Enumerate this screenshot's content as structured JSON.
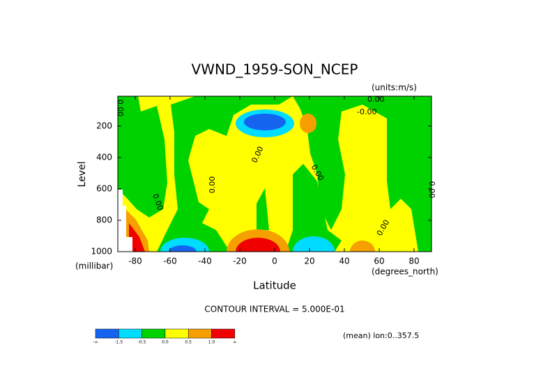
{
  "chart_data": {
    "type": "contour",
    "title": "VWND_1959-SON_NCEP",
    "units_label": "(units:m/s)",
    "y_label": "Level",
    "y_unit_label": "(millibar)",
    "x_label": "Latitude",
    "x_unit_label": "(degrees_north)",
    "contour_interval": "CONTOUR INTERVAL = 5.000E-01",
    "footnote": "(mean) lon:0..357.5",
    "xlim": [
      -90,
      90
    ],
    "xticks": [
      -80,
      -60,
      -40,
      -20,
      0,
      20,
      40,
      60,
      80
    ],
    "ylim": [
      1000,
      10
    ],
    "yticks": [
      200,
      400,
      600,
      800,
      1000
    ],
    "annotations": [
      "0.00",
      "-0.00",
      "0.00",
      "0.00",
      "0.00",
      "0.00",
      "0.00",
      "0.00",
      "0.00"
    ],
    "colorbar": {
      "levels": [
        "-∞",
        -1.5,
        -0.5,
        {
          "value": 0,
          "label": "0.0"
        },
        0.5,
        {
          "value": 1,
          "label": "1.0"
        },
        "∞"
      ],
      "colors": [
        "#1464f0",
        "#00dcff",
        "#00d200",
        "#ffff00",
        "#f5a000",
        "#f00000"
      ]
    }
  }
}
